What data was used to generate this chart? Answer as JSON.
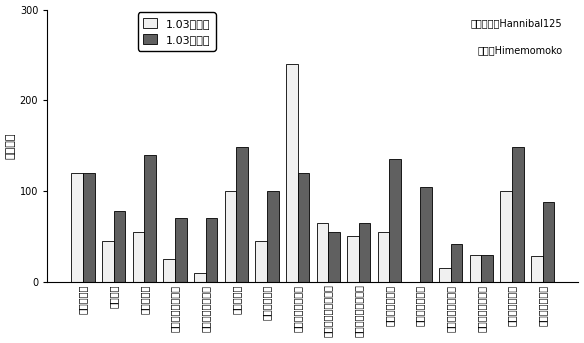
{
  "categories": [
    "不蓄力拜年",
    "飞渡浮桥",
    "飞渡旋涡云",
    "著名十字斩（纸）",
    "著名十字斩（无）",
    "蓄力不死斩",
    "不蓄力不死斩",
    "仙峰脚（打下段）",
    "仙峰脚（普通全套）",
    "菩萨脚（普通全套）",
    "蓄力龙闪（纸）",
    "蓄力龙闪（无）",
    "不蓄力龙闪（纸）",
    "不蓄力龙闪（无）",
    "秘传一心（纸）",
    "秘传一心（无）"
  ],
  "before": [
    120,
    45,
    55,
    25,
    10,
    100,
    45,
    240,
    65,
    50,
    55,
    0,
    15,
    30,
    100,
    28
  ],
  "after": [
    120,
    78,
    140,
    70,
    70,
    148,
    100,
    120,
    55,
    65,
    135,
    105,
    42,
    30,
    148,
    88
  ],
  "legend_before": "1.03补丁前",
  "legend_after": "1.03补丁后",
  "ylabel": "躯干伤値",
  "ylim": [
    0,
    300
  ],
  "yticks": [
    0,
    100,
    200,
    300
  ],
  "color_before": "#f0f0f0",
  "color_after": "#606060",
  "edge_color": "#000000",
  "annotation1": "数据挖掘：Hannibal125",
  "annotation2": "制图：Himemomoko",
  "label_fontsize": 8,
  "tick_fontsize": 7,
  "annot_fontsize": 7,
  "legend_fontsize": 8,
  "bar_width": 0.38
}
